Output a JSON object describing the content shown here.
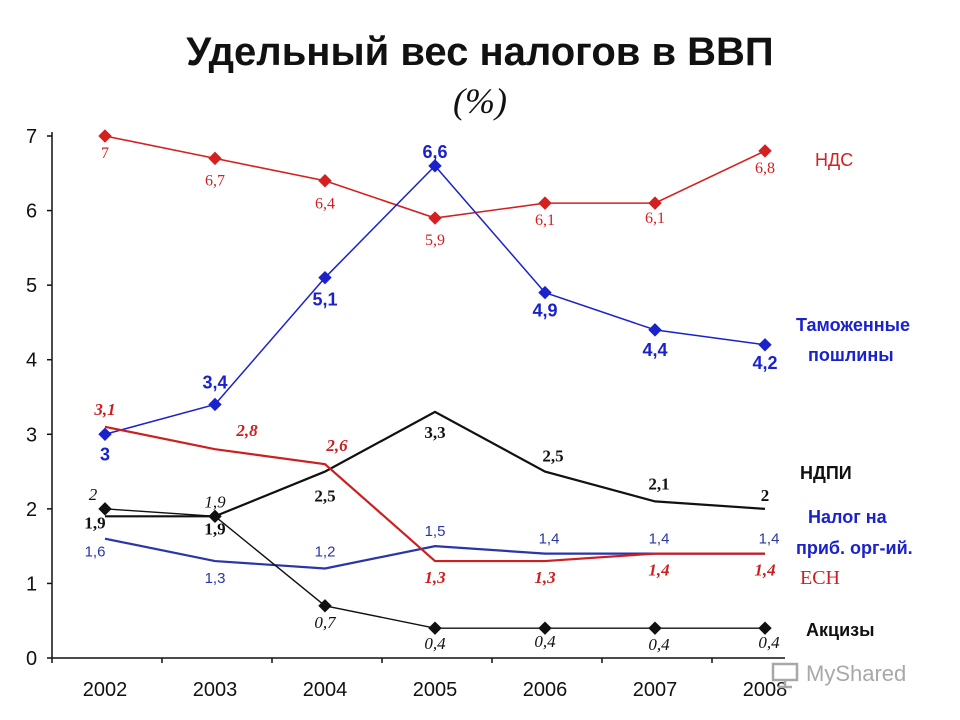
{
  "title": "Удельный вес налогов в ВВП",
  "subtitle": "(%)",
  "watermark": "MyShared",
  "chart_data": {
    "type": "line",
    "title": "Удельный вес налогов в ВВП",
    "subtitle": "(%)",
    "x": [
      "2002",
      "2003",
      "2004",
      "2005",
      "2006",
      "2007",
      "2008"
    ],
    "y_ticks": [
      "0",
      "1",
      "2",
      "3",
      "4",
      "5",
      "6",
      "7"
    ],
    "ylim": [
      0,
      7
    ],
    "grid": false,
    "series": [
      {
        "name": "НДС",
        "color": "#d42020",
        "marker": "diamond",
        "values": [
          7,
          6.7,
          6.4,
          5.9,
          6.1,
          6.1,
          6.8
        ],
        "labels": [
          "7",
          "6,7",
          "6,4",
          "5,9",
          "6,1",
          "6,1",
          "6,8"
        ]
      },
      {
        "name": "Таможенные пошлины",
        "color": "#1a22cc",
        "marker": "diamond",
        "values": [
          3,
          3.4,
          5.1,
          6.6,
          4.9,
          4.4,
          4.2
        ],
        "labels": [
          "3",
          "3,4",
          "5,1",
          "6,6",
          "4,9",
          "4,4",
          "4,2"
        ]
      },
      {
        "name": "НДПИ",
        "color": "#111111",
        "marker": "none",
        "values": [
          1.9,
          1.9,
          2.5,
          3.3,
          2.5,
          2.1,
          2
        ],
        "labels": [
          "1,9",
          "1,9",
          "2,5",
          "3,3",
          "2,5",
          "2,1",
          "2"
        ]
      },
      {
        "name": "Налог на приб. орг-ий.",
        "color": "#2a35a8",
        "marker": "none",
        "values": [
          1.6,
          1.3,
          1.2,
          1.5,
          1.4,
          1.4,
          1.4
        ],
        "labels": [
          "1,6",
          "1,3",
          "1,2",
          "1,5",
          "1,4",
          "1,4",
          "1,4"
        ]
      },
      {
        "name": "ЕСН",
        "color": "#cc1f1f",
        "marker": "none",
        "values": [
          3.1,
          2.8,
          2.6,
          1.3,
          1.3,
          1.4,
          1.4
        ],
        "labels": [
          "3,1",
          "2,8",
          "2,6",
          "1,3",
          "1,3",
          "1,4",
          "1,4"
        ]
      },
      {
        "name": "Акцизы",
        "color": "#111111",
        "marker": "diamond",
        "values": [
          2,
          1.9,
          0.7,
          0.4,
          0.4,
          0.4,
          0.4
        ],
        "labels": [
          "2",
          "1,9",
          "0,7",
          "0,4",
          "0,4",
          "0,4",
          "0,4"
        ]
      }
    ],
    "legend": [
      {
        "text": "НДС",
        "color": "#d42020"
      },
      {
        "text": "Таможенные",
        "color": "#1a22cc"
      },
      {
        "text": "пошлины",
        "color": "#1a22cc"
      },
      {
        "text": "НДПИ",
        "color": "#111111"
      },
      {
        "text": "Налог на",
        "color": "#1a22cc"
      },
      {
        "text": "приб. орг-ий.",
        "color": "#1a22cc"
      },
      {
        "text": "ЕСН",
        "color": "#cc1f1f"
      },
      {
        "text": "Акцизы",
        "color": "#111111"
      }
    ]
  }
}
